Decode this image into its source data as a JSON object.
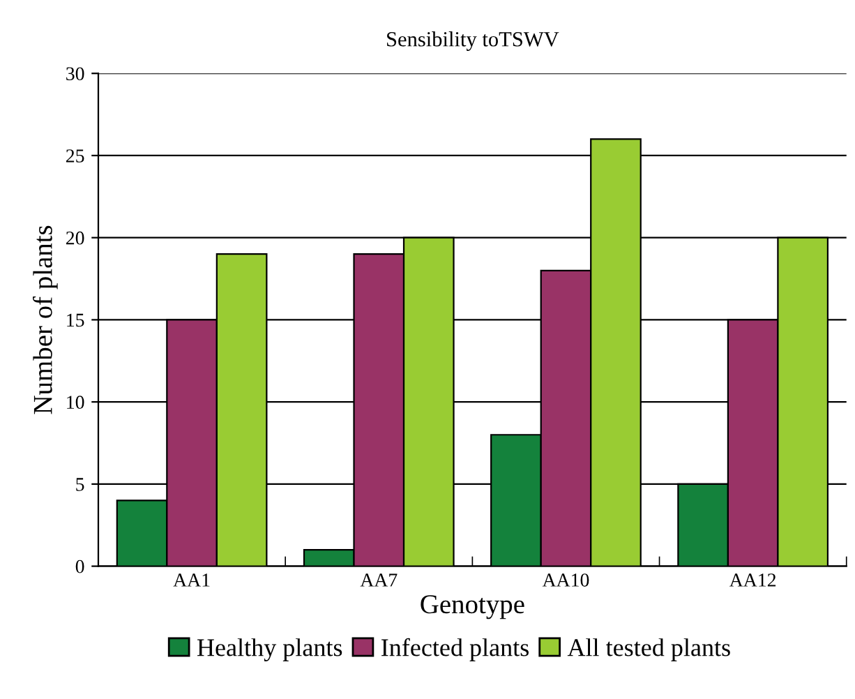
{
  "chart_data": {
    "type": "bar",
    "title": "Sensibility toTSWV",
    "xlabel": "Genotype",
    "ylabel": "Number of plants",
    "categories": [
      "AA1",
      "AA7",
      "AA10",
      "AA12"
    ],
    "series": [
      {
        "name": "Healthy plants",
        "color": "#14823c",
        "values": [
          4,
          1,
          8,
          5
        ]
      },
      {
        "name": "Infected plants",
        "color": "#993366",
        "values": [
          15,
          19,
          18,
          15
        ]
      },
      {
        "name": "All tested plants",
        "color": "#99cc33",
        "values": [
          19,
          20,
          26,
          20
        ]
      }
    ],
    "ylim": [
      0,
      30
    ],
    "yticks": [
      0,
      5,
      10,
      15,
      20,
      25,
      30
    ],
    "grid": "y",
    "legend": "bottom"
  }
}
